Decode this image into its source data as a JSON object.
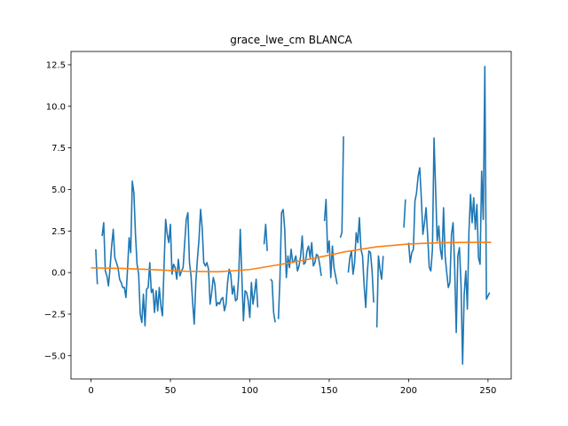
{
  "chart_data": {
    "type": "line",
    "title": "grace_lwe_cm BLANCA",
    "xlabel": "",
    "ylabel": "",
    "xlim": [
      -12.6,
      264.6
    ],
    "ylim": [
      -6.4,
      13.3
    ],
    "xticks": [
      0,
      50,
      100,
      150,
      200,
      250
    ],
    "yticks": [
      -5.0,
      -2.5,
      0.0,
      2.5,
      5.0,
      7.5,
      10.0,
      12.5
    ],
    "ytick_labels": [
      "−5.0",
      "−2.5",
      "0.0",
      "2.5",
      "5.0",
      "7.5",
      "10.0",
      "12.5"
    ],
    "grid": false,
    "colors": {
      "raw": "#1f77b4",
      "smooth": "#ff7f0e"
    },
    "series": [
      {
        "name": "",
        "color": "#1f77b4",
        "points": [
          [
            3,
            1.4
          ],
          [
            4,
            -0.7
          ],
          [
            null,
            null
          ],
          [
            7,
            2.2
          ],
          [
            8,
            3.0
          ],
          [
            9,
            0.1
          ],
          [
            10,
            -0.2
          ],
          [
            11,
            -0.8
          ],
          [
            12,
            0.3
          ],
          [
            13,
            1.6
          ],
          [
            14,
            2.6
          ],
          [
            15,
            0.9
          ],
          [
            17,
            0.3
          ],
          [
            18,
            -0.4
          ],
          [
            19,
            -0.6
          ],
          [
            20,
            -0.9
          ],
          [
            21,
            -0.9
          ],
          [
            22,
            -1.5
          ],
          [
            23,
            0.2
          ],
          [
            24,
            2.1
          ],
          [
            25,
            1.2
          ],
          [
            26,
            5.5
          ],
          [
            27,
            4.8
          ],
          [
            28,
            2.3
          ],
          [
            29,
            0.5
          ],
          [
            30,
            -0.1
          ],
          [
            31,
            -2.5
          ],
          [
            32,
            -3.0
          ],
          [
            33,
            -1.3
          ],
          [
            34,
            -3.2
          ],
          [
            35,
            -1.0
          ],
          [
            36,
            -0.9
          ],
          [
            37,
            0.6
          ],
          [
            38,
            -1.2
          ],
          [
            39,
            -1.0
          ],
          [
            40,
            -2.4
          ],
          [
            41,
            -1.1
          ],
          [
            42,
            -2.3
          ],
          [
            43,
            -0.9
          ],
          [
            44,
            -2.0
          ],
          [
            45,
            -2.6
          ],
          [
            46,
            0.4
          ],
          [
            47,
            3.2
          ],
          [
            48,
            2.3
          ],
          [
            49,
            1.8
          ],
          [
            50,
            2.9
          ],
          [
            51,
            -0.1
          ],
          [
            52,
            0.5
          ],
          [
            53,
            0.3
          ],
          [
            54,
            -0.4
          ],
          [
            55,
            0.8
          ],
          [
            56,
            -0.2
          ],
          [
            57,
            0.1
          ],
          [
            58,
            0.3
          ],
          [
            59,
            1.8
          ],
          [
            60,
            3.2
          ],
          [
            61,
            3.6
          ],
          [
            62,
            0.6
          ],
          [
            63,
            -0.2
          ],
          [
            64,
            -1.8
          ],
          [
            65,
            -3.1
          ],
          [
            66,
            -0.6
          ],
          [
            67,
            0.8
          ],
          [
            68,
            2.0
          ],
          [
            69,
            3.8
          ],
          [
            70,
            2.7
          ],
          [
            71,
            0.6
          ],
          [
            72,
            0.4
          ],
          [
            73,
            0.6
          ],
          [
            74,
            0.2
          ],
          [
            75,
            -1.9
          ],
          [
            76,
            -1.2
          ],
          [
            77,
            -0.3
          ],
          [
            78,
            -0.7
          ],
          [
            79,
            -2.0
          ],
          [
            80,
            -1.8
          ],
          [
            81,
            -1.9
          ],
          [
            82,
            -1.6
          ],
          [
            83,
            -1.5
          ],
          [
            84,
            -2.3
          ],
          [
            85,
            -1.9
          ],
          [
            86,
            -0.6
          ],
          [
            87,
            0.2
          ],
          [
            88,
            -0.1
          ],
          [
            89,
            -1.3
          ],
          [
            90,
            -0.8
          ],
          [
            91,
            -1.7
          ],
          [
            92,
            -1.6
          ],
          [
            93,
            -0.2
          ],
          [
            94,
            2.6
          ],
          [
            95,
            -0.3
          ],
          [
            96,
            -2.9
          ],
          [
            97,
            -1.1
          ],
          [
            98,
            -1.2
          ],
          [
            99,
            -1.7
          ],
          [
            100,
            -2.7
          ],
          [
            101,
            -0.6
          ],
          [
            102,
            -1.9
          ],
          [
            103,
            -1.2
          ],
          [
            104,
            -0.4
          ],
          [
            105,
            -2.1
          ],
          [
            null,
            null
          ],
          [
            109,
            1.7
          ],
          [
            110,
            2.9
          ],
          [
            111,
            1.3
          ],
          [
            null,
            null
          ],
          [
            113,
            -0.4
          ],
          [
            114,
            -0.5
          ],
          [
            115,
            -2.4
          ],
          [
            116,
            -3.0
          ],
          [
            null,
            null
          ],
          [
            118,
            -2.8
          ],
          [
            119,
            -0.3
          ],
          [
            120,
            3.6
          ],
          [
            121,
            3.8
          ],
          [
            122,
            2.6
          ],
          [
            123,
            -0.3
          ],
          [
            124,
            1.0
          ],
          [
            125,
            0.3
          ],
          [
            126,
            1.4
          ],
          [
            127,
            0.6
          ],
          [
            128,
            0.7
          ],
          [
            129,
            1.0
          ],
          [
            130,
            0.1
          ],
          [
            131,
            0.4
          ],
          [
            132,
            1.0
          ],
          [
            133,
            2.2
          ],
          [
            134,
            0.5
          ],
          [
            135,
            0.6
          ],
          [
            136,
            1.3
          ],
          [
            137,
            1.6
          ],
          [
            138,
            0.9
          ],
          [
            139,
            1.8
          ],
          [
            140,
            0.4
          ],
          [
            141,
            0.6
          ],
          [
            142,
            1.1
          ],
          [
            143,
            1.0
          ],
          [
            144,
            0.5
          ],
          [
            145,
            -0.2
          ],
          [
            null,
            null
          ],
          [
            147,
            3.1
          ],
          [
            148,
            4.4
          ],
          [
            149,
            1.2
          ],
          [
            150,
            1.9
          ],
          [
            151,
            -0.3
          ],
          [
            152,
            1.6
          ],
          [
            153,
            0.3
          ],
          [
            154,
            -0.2
          ],
          [
            155,
            -0.7
          ],
          [
            null,
            null
          ],
          [
            157,
            2.1
          ],
          [
            158,
            2.4
          ],
          [
            159,
            8.2
          ],
          [
            null,
            null
          ],
          [
            162,
            0.0
          ],
          [
            163,
            0.9
          ],
          [
            164,
            1.3
          ],
          [
            165,
            -0.1
          ],
          [
            166,
            0.6
          ],
          [
            167,
            2.4
          ],
          [
            168,
            1.8
          ],
          [
            169,
            3.3
          ],
          [
            170,
            1.4
          ],
          [
            171,
            1.0
          ],
          [
            172,
            -0.8
          ],
          [
            173,
            -2.1
          ],
          [
            174,
            0.0
          ],
          [
            175,
            1.3
          ],
          [
            176,
            1.2
          ],
          [
            177,
            0.1
          ],
          [
            178,
            -1.8
          ],
          [
            null,
            null
          ],
          [
            180,
            -3.3
          ],
          [
            181,
            1.0
          ],
          [
            182,
            0.2
          ],
          [
            183,
            -0.4
          ],
          [
            184,
            1.0
          ],
          [
            null,
            null
          ],
          [
            197,
            2.7
          ],
          [
            198,
            4.4
          ],
          [
            null,
            null
          ],
          [
            200,
            1.8
          ],
          [
            201,
            0.6
          ],
          [
            202,
            1.2
          ],
          [
            203,
            1.4
          ],
          [
            204,
            4.3
          ],
          [
            205,
            4.8
          ],
          [
            206,
            5.8
          ],
          [
            207,
            6.3
          ],
          [
            208,
            4.5
          ],
          [
            209,
            2.3
          ],
          [
            210,
            3.0
          ],
          [
            211,
            3.9
          ],
          [
            212,
            2.2
          ],
          [
            213,
            0.3
          ],
          [
            214,
            0.1
          ],
          [
            215,
            1.4
          ],
          [
            216,
            8.1
          ],
          [
            217,
            5.0
          ],
          [
            218,
            1.9
          ],
          [
            219,
            2.8
          ],
          [
            220,
            1.4
          ],
          [
            221,
            0.8
          ],
          [
            222,
            3.9
          ],
          [
            223,
            1.0
          ],
          [
            224,
            0.0
          ],
          [
            225,
            -0.9
          ],
          [
            226,
            -0.6
          ],
          [
            227,
            2.3
          ],
          [
            228,
            3.0
          ],
          [
            229,
            0.3
          ],
          [
            230,
            -3.6
          ],
          [
            231,
            1.0
          ],
          [
            232,
            1.5
          ],
          [
            233,
            -0.7
          ],
          [
            234,
            -5.5
          ],
          [
            235,
            -1.3
          ],
          [
            236,
            0.1
          ],
          [
            237,
            -2.2
          ],
          [
            238,
            2.5
          ],
          [
            239,
            4.7
          ],
          [
            240,
            3.0
          ],
          [
            241,
            4.5
          ],
          [
            242,
            2.6
          ],
          [
            243,
            4.1
          ],
          [
            244,
            0.9
          ],
          [
            245,
            0.5
          ],
          [
            246,
            6.1
          ],
          [
            247,
            3.2
          ],
          [
            248,
            12.4
          ],
          [
            249,
            -1.6
          ],
          [
            250,
            -1.4
          ],
          [
            251,
            -1.2
          ]
        ]
      },
      {
        "name": "",
        "color": "#ff7f0e",
        "points": [
          [
            0,
            0.28
          ],
          [
            20,
            0.25
          ],
          [
            40,
            0.17
          ],
          [
            60,
            0.08
          ],
          [
            80,
            0.05
          ],
          [
            100,
            0.18
          ],
          [
            120,
            0.5
          ],
          [
            140,
            0.85
          ],
          [
            160,
            1.25
          ],
          [
            180,
            1.55
          ],
          [
            200,
            1.72
          ],
          [
            220,
            1.8
          ],
          [
            240,
            1.82
          ],
          [
            252,
            1.82
          ]
        ]
      }
    ]
  }
}
